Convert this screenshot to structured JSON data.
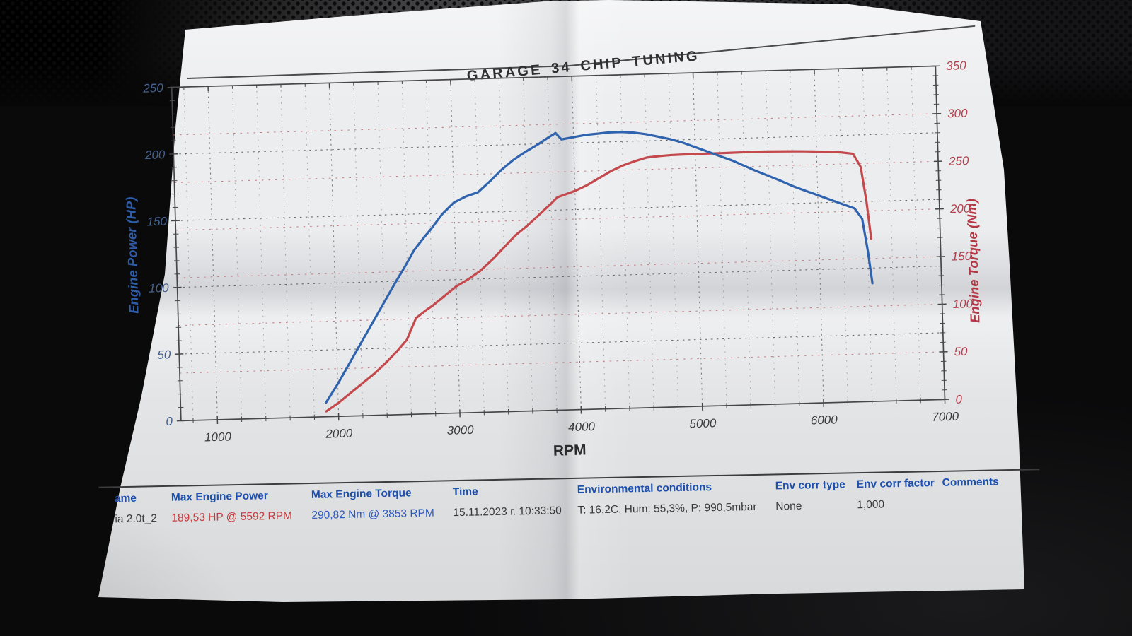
{
  "title": "GARAGE 34 CHIP TUNING",
  "chart_data": {
    "type": "line",
    "title": "GARAGE 34 CHIP TUNING",
    "xlabel": "RPM",
    "x_range": [
      700,
      7000
    ],
    "x_major_ticks": [
      1000,
      2000,
      3000,
      4000,
      5000,
      6000,
      7000
    ],
    "x_minor_step": 200,
    "grid": "dotted, horizontal majors for both y-axes, vertical every 200 RPM",
    "legend": "none",
    "left_axis": {
      "label": "Engine Power (HP)",
      "range": [
        0,
        250
      ],
      "major_ticks": [
        0,
        50,
        100,
        150,
        200,
        250
      ],
      "minor_step": 10,
      "label_color": "#2e5ca6",
      "tick_color": "#46618e",
      "grid_color": "#606062"
    },
    "right_axis": {
      "label": "Engine Torque (Nm)",
      "range": [
        0,
        350
      ],
      "major_ticks": [
        0,
        50,
        100,
        150,
        200,
        250,
        300,
        350
      ],
      "minor_step": 10,
      "label_color": "#b43844",
      "tick_color": "#b4414e",
      "grid_color": "#c4787d"
    },
    "x": [
      1900,
      2000,
      2100,
      2200,
      2300,
      2400,
      2500,
      2580,
      2660,
      2750,
      2800,
      2900,
      3000,
      3100,
      3200,
      3300,
      3400,
      3500,
      3600,
      3700,
      3800,
      3853,
      3900,
      4000,
      4100,
      4200,
      4300,
      4400,
      4500,
      4600,
      4700,
      4800,
      4900,
      5000,
      5100,
      5200,
      5300,
      5400,
      5500,
      5592,
      5700,
      5800,
      5900,
      6000,
      6100,
      6200,
      6300,
      6360,
      6400,
      6430
    ],
    "series": [
      {
        "name": "Engine Power",
        "unit": "HP",
        "axis": "left",
        "color": "#c4494d",
        "max_label": "189,53 HP @ 5592 RPM",
        "values": [
          4,
          10,
          17,
          24,
          31,
          39,
          48,
          56,
          72,
          78,
          81,
          88,
          95,
          100,
          106,
          114,
          123,
          132,
          139,
          147,
          155,
          159.6,
          161,
          164,
          168,
          173,
          178,
          182,
          185,
          187.5,
          188.3,
          188.8,
          189,
          189.1,
          189.2,
          189.2,
          189.3,
          189.4,
          189.5,
          189.5,
          189.3,
          189.1,
          188.8,
          188.4,
          187.9,
          187.3,
          186,
          176,
          150,
          122
        ]
      },
      {
        "name": "Engine Torque",
        "unit": "Nm",
        "axis": "right",
        "color": "#2f63ae",
        "max_label": "290,82 Nm @ 3853 RPM",
        "values": [
          15,
          34,
          55,
          76,
          97,
          118,
          139,
          155,
          172,
          186,
          193,
          209,
          221,
          227,
          231,
          242,
          254,
          264,
          272,
          279,
          287,
          290.8,
          284,
          286,
          288,
          289,
          290,
          290,
          289,
          287,
          284,
          281,
          277,
          272,
          267,
          262,
          257,
          251,
          245,
          240,
          234,
          228,
          223,
          218,
          213,
          208,
          203,
          192,
          158,
          124
        ]
      }
    ]
  },
  "results_table": {
    "header_color": "#1c4fae",
    "columns": [
      {
        "header": "ame",
        "value": "ia 2.0t_2",
        "value_color": "#39393b"
      },
      {
        "header": "Max Engine Power",
        "value": "189,53 HP @ 5592 RPM",
        "value_color": "#c53a3c"
      },
      {
        "header": "Max Engine Torque",
        "value": "290,82 Nm @ 3853 RPM",
        "value_color": "#2d5abe"
      },
      {
        "header": "Time",
        "value": "15.11.2023 г. 10:33:50",
        "value_color": "#39393b"
      },
      {
        "header": "Environmental conditions",
        "value": "T: 16,2C, Hum: 55,3%, P: 990,5mbar",
        "value_color": "#39393b"
      },
      {
        "header": "Env corr type",
        "value": "None",
        "value_color": "#39393b"
      },
      {
        "header": "Env corr factor",
        "value": "1,000",
        "value_color": "#39393b"
      },
      {
        "header": "Comments",
        "value": "",
        "value_color": "#39393b"
      }
    ]
  }
}
